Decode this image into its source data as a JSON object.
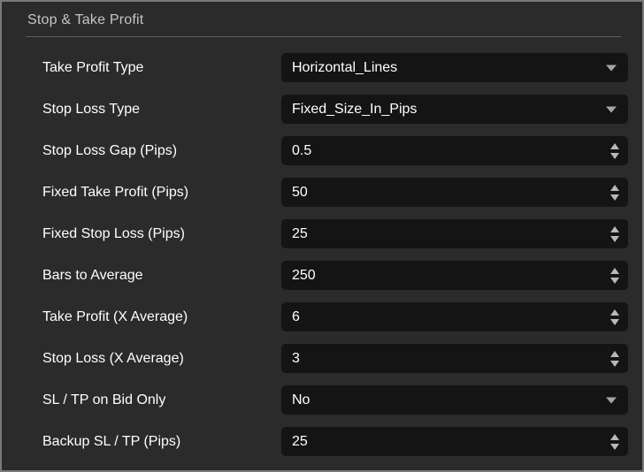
{
  "panel": {
    "title": "Stop & Take Profit"
  },
  "colors": {
    "panel_background": "#2b2b2b",
    "panel_border": "#7a7a7a",
    "field_background": "#141414",
    "header_text": "#c6c6c6",
    "label_text": "#ffffff",
    "value_text": "#ffffff",
    "divider": "#5e5e5e",
    "arrow": "#b8b8b8"
  },
  "icons": {
    "dropdown_caret": "triangle-down",
    "stepper_up": "triangle-up",
    "stepper_down": "triangle-down"
  },
  "fields": [
    {
      "label": "Take Profit Type",
      "value": "Horizontal_Lines",
      "control": "dropdown"
    },
    {
      "label": "Stop Loss Type",
      "value": "Fixed_Size_In_Pips",
      "control": "dropdown"
    },
    {
      "label": "Stop Loss Gap (Pips)",
      "value": "0.5",
      "control": "stepper"
    },
    {
      "label": "Fixed Take Profit (Pips)",
      "value": "50",
      "control": "stepper"
    },
    {
      "label": "Fixed Stop Loss (Pips)",
      "value": "25",
      "control": "stepper"
    },
    {
      "label": "Bars to Average",
      "value": "250",
      "control": "stepper"
    },
    {
      "label": "Take Profit (X Average)",
      "value": "6",
      "control": "stepper"
    },
    {
      "label": "Stop Loss (X Average)",
      "value": "3",
      "control": "stepper"
    },
    {
      "label": "SL / TP on Bid Only",
      "value": "No",
      "control": "dropdown"
    },
    {
      "label": "Backup SL / TP (Pips)",
      "value": "25",
      "control": "stepper"
    }
  ]
}
